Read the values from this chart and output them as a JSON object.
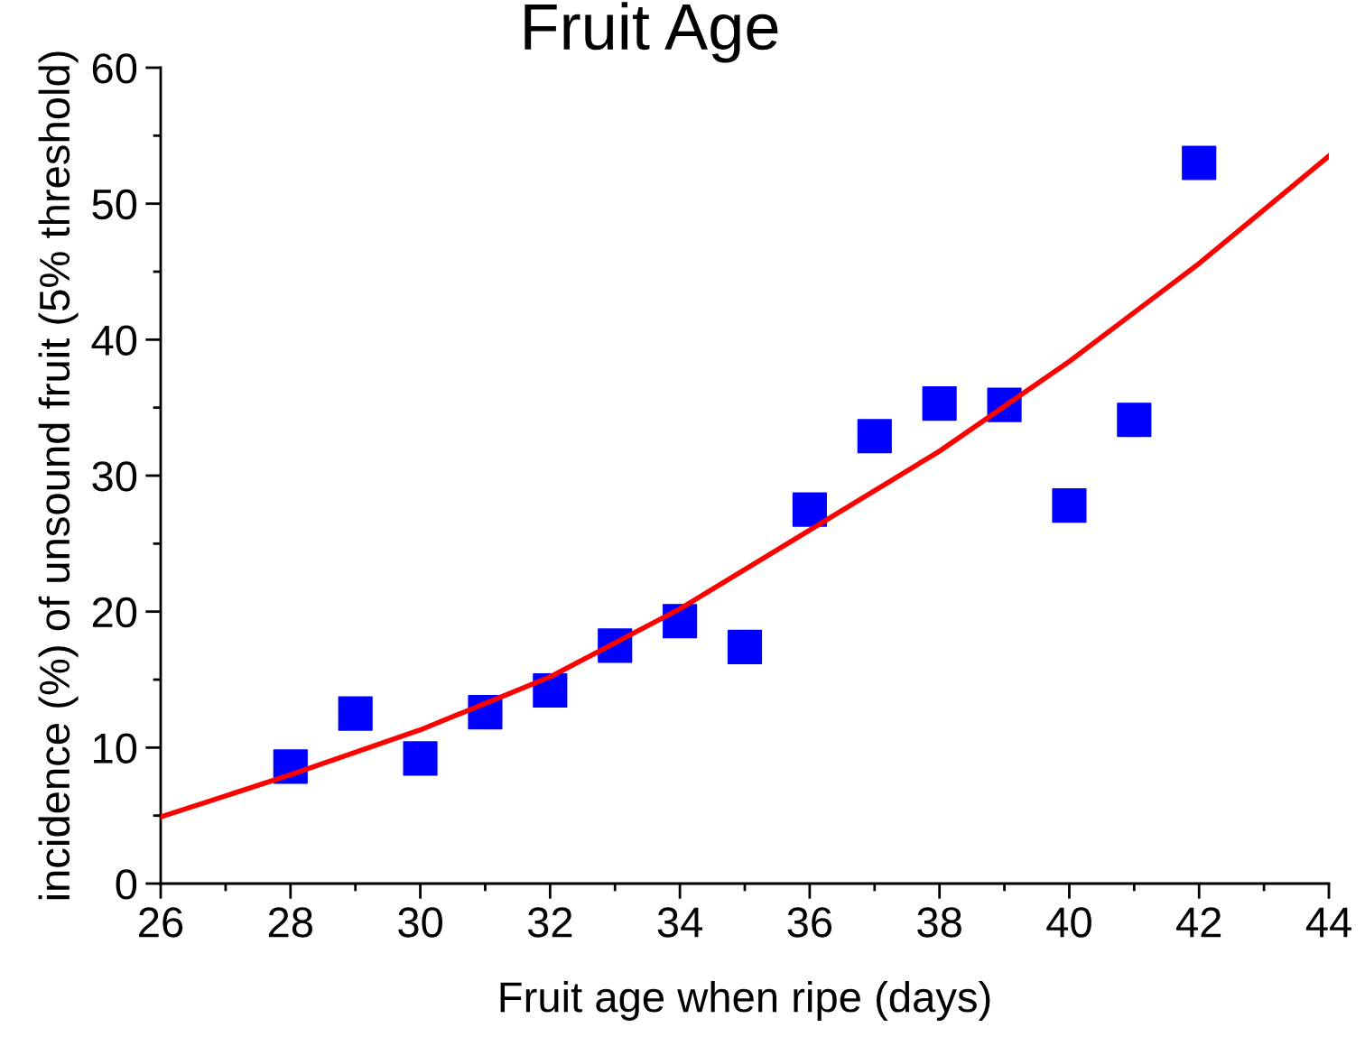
{
  "chart_data": {
    "type": "scatter",
    "title": "Fruit Age",
    "xlabel": "Fruit age when ripe (days)",
    "ylabel": "incidence (%) of unsound fruit (5% threshold)",
    "marker": "square",
    "grid": false,
    "legend": false,
    "xlim": [
      26,
      44
    ],
    "ylim": [
      0,
      60
    ],
    "xticks": [
      26,
      {
        "value": 27,
        "label": null
      },
      28,
      {
        "value": 29,
        "label": null
      },
      30,
      {
        "value": 31,
        "label": null
      },
      32,
      {
        "value": 33,
        "label": null
      },
      34,
      {
        "value": 35,
        "label": null
      },
      36,
      {
        "value": 37,
        "label": null
      },
      38,
      {
        "value": 39,
        "label": null
      },
      40,
      {
        "value": 41,
        "label": null
      },
      42,
      {
        "value": 43,
        "label": null
      },
      44
    ],
    "yticks": [
      0,
      {
        "value": 5,
        "label": null
      },
      10,
      {
        "value": 15,
        "label": null
      },
      20,
      {
        "value": 25,
        "label": null
      },
      30,
      {
        "value": 35,
        "label": null
      },
      40,
      {
        "value": 45,
        "label": null
      },
      50,
      {
        "value": 55,
        "label": null
      },
      60
    ],
    "series": [
      {
        "color": "#0000ff",
        "x": [
          28,
          29,
          30,
          31,
          32,
          33,
          34,
          35,
          36,
          37,
          38,
          39,
          40,
          41,
          42
        ],
        "values": [
          8.6,
          12.5,
          9.2,
          12.6,
          14.2,
          17.5,
          19.3,
          17.4,
          27.5,
          32.9,
          35.3,
          35.2,
          27.8,
          34.1,
          53.0
        ]
      },
      {
        "type": "line",
        "color": "#ff0000",
        "marker": "none",
        "line_style": "solid",
        "x": [
          26,
          28,
          30,
          32,
          34,
          36,
          38,
          40,
          42,
          44
        ],
        "values": [
          4.9,
          8.0,
          11.3,
          15.2,
          20.2,
          26.0,
          31.8,
          38.4,
          45.6,
          53.5
        ]
      }
    ]
  }
}
